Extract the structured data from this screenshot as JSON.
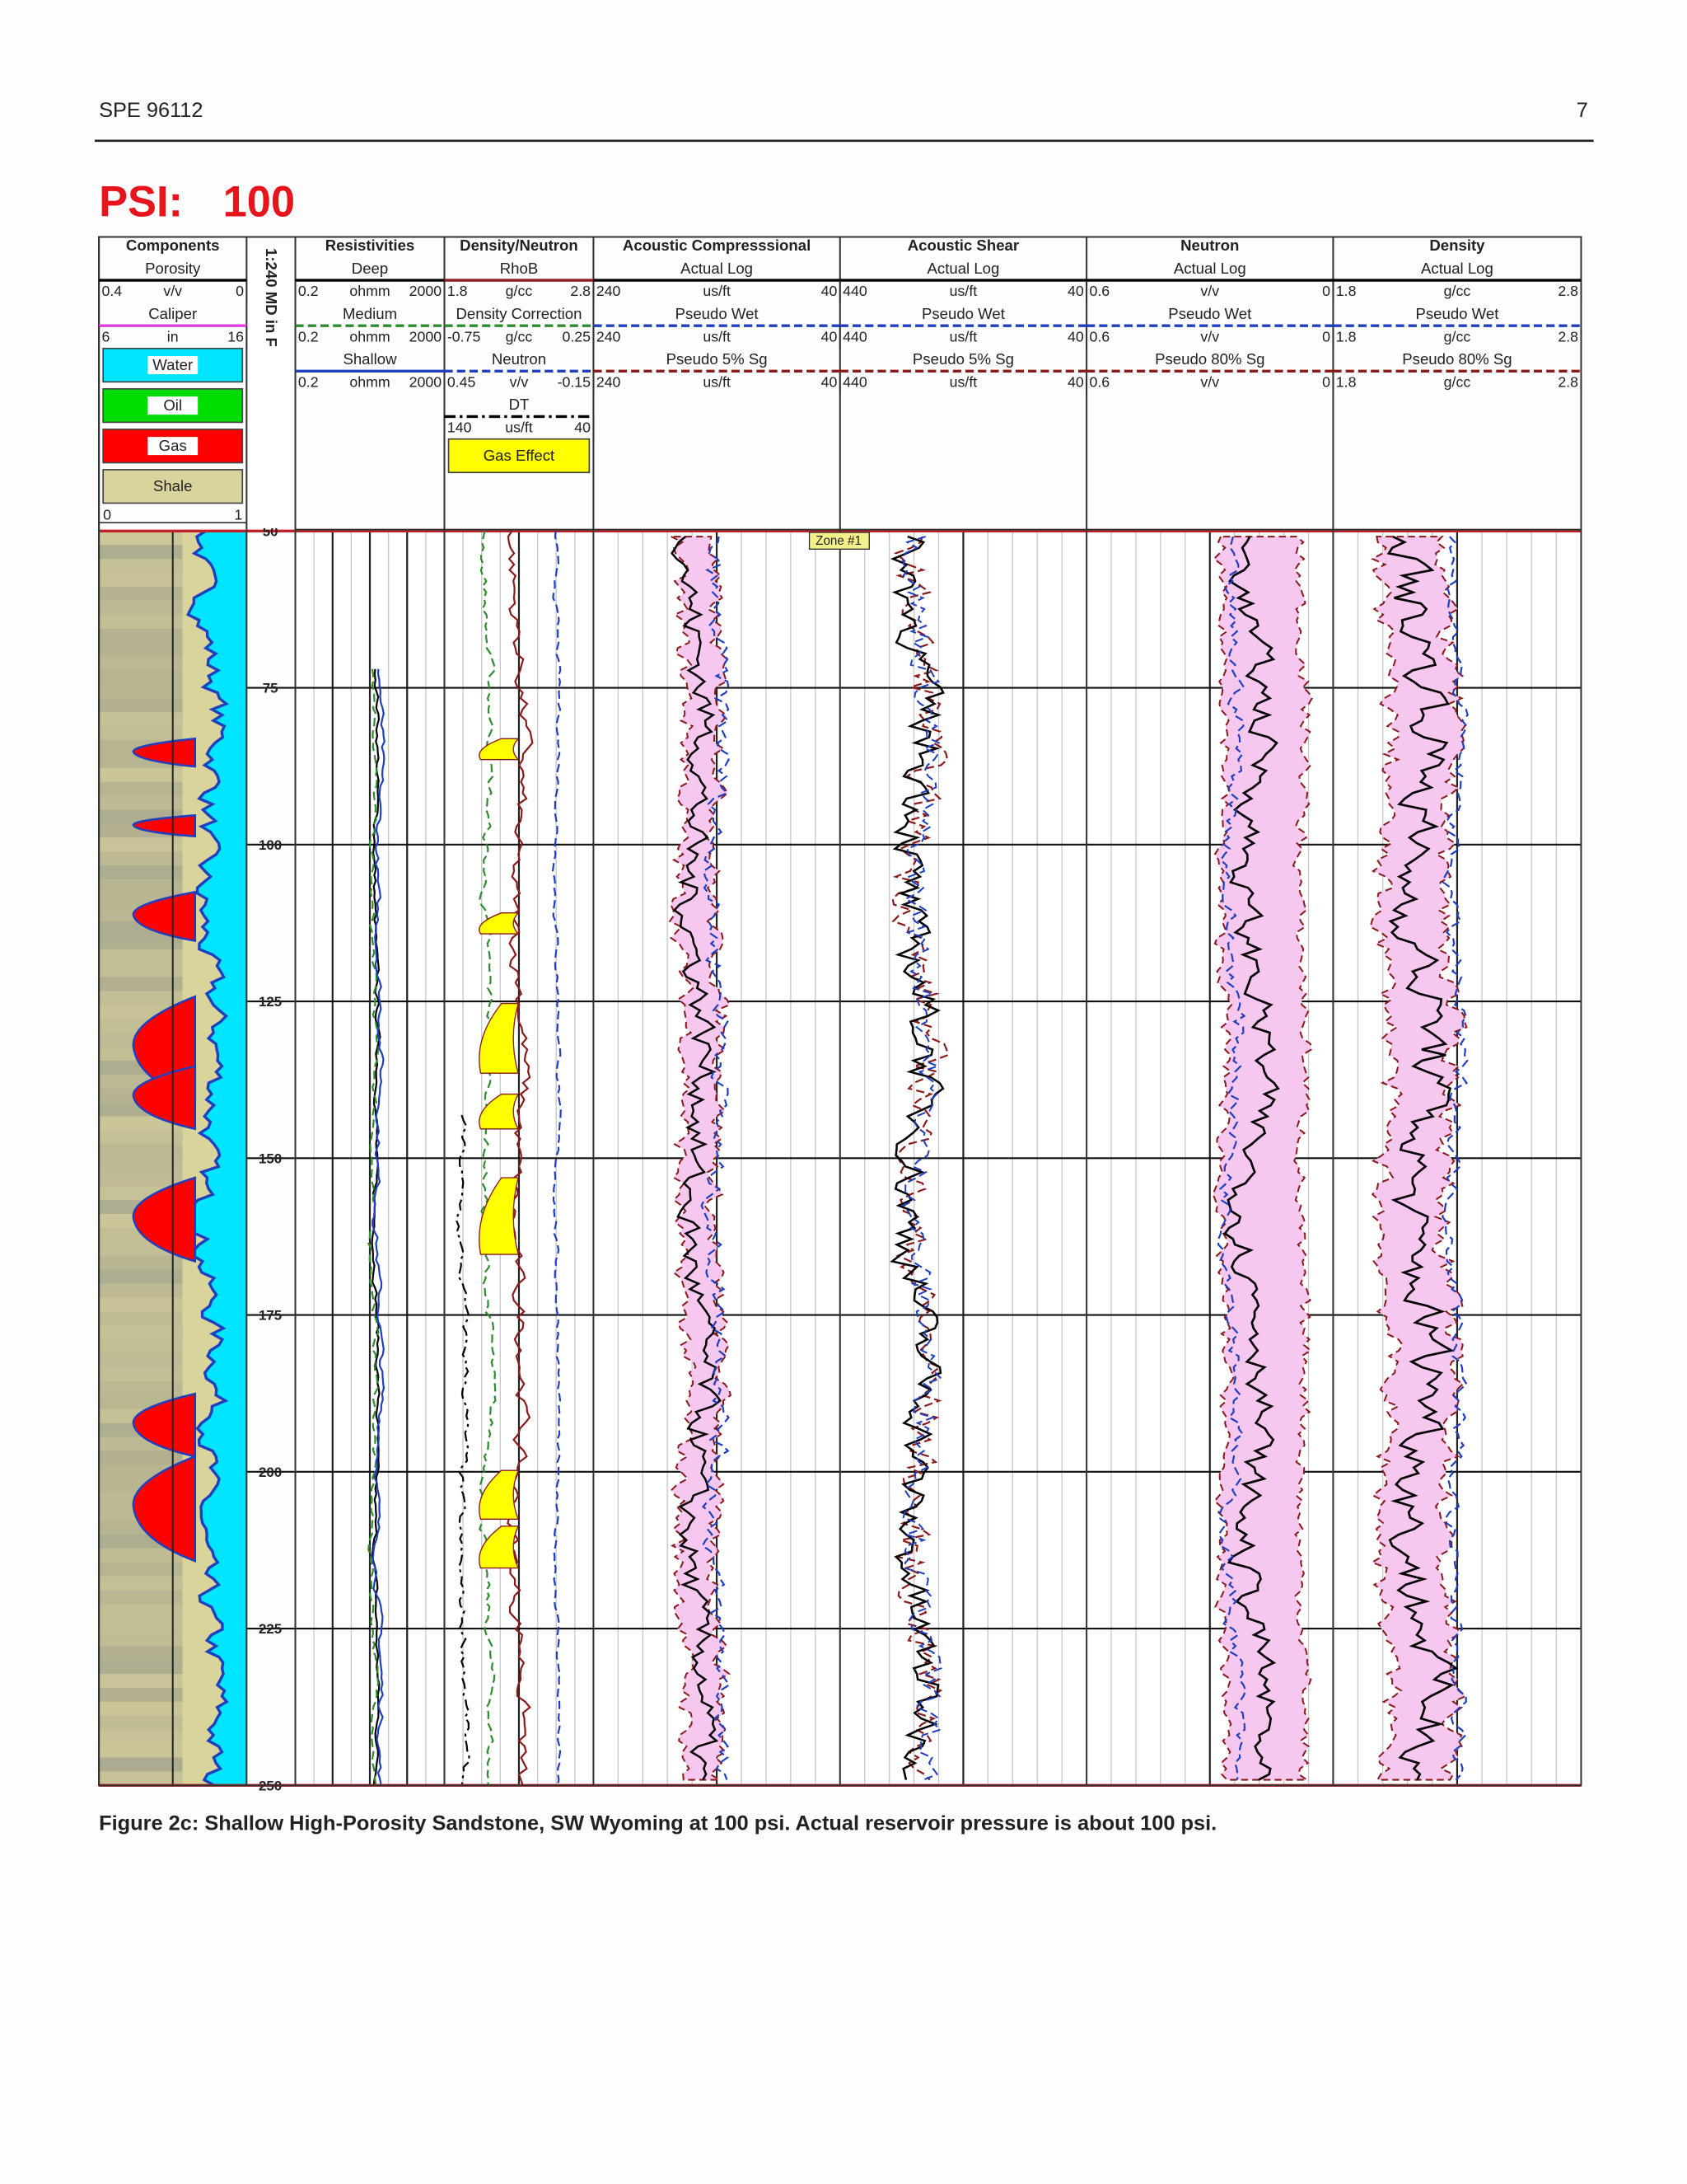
{
  "header": {
    "left": "SPE 96112",
    "right": "7"
  },
  "figure": {
    "title_label": "PSI:",
    "title_value": 100,
    "depth_label": "1:240 MD in F",
    "depth_lim": [
      50,
      250
    ],
    "depth_ticks": [
      50,
      75,
      100,
      125,
      150,
      175,
      200,
      225,
      250
    ],
    "zone": "Zone #1",
    "tracks": [
      {
        "title": "Components",
        "rows": [
          {
            "label": "Porosity"
          },
          {
            "scale": [
              0.4,
              "v/v",
              0
            ],
            "color": "#000000",
            "dash": "solid"
          },
          {
            "label": "Caliper"
          },
          {
            "scale": [
              6,
              "in",
              16
            ],
            "color": "#e040e0",
            "dash": "solid"
          }
        ],
        "legend": [
          {
            "label": "Water",
            "color": "#00e5ff"
          },
          {
            "label": "Oil",
            "color": "#00dd00"
          },
          {
            "label": "Gas",
            "color": "#ff0000"
          },
          {
            "label": "Shale",
            "color": "#d9d39c"
          }
        ],
        "footer_scale": [
          0,
          1
        ]
      },
      {
        "title": "Resistivities",
        "rows": [
          {
            "label": "Deep"
          },
          {
            "scale": [
              0.2,
              "ohmm",
              2000
            ],
            "color": "#000000",
            "dash": "solid"
          },
          {
            "label": "Medium"
          },
          {
            "scale": [
              0.2,
              "ohmm",
              2000
            ],
            "color": "#2e8b2e",
            "dash": "dashed"
          },
          {
            "label": "Shallow"
          },
          {
            "scale": [
              0.2,
              "ohmm",
              2000
            ],
            "color": "#1f3fbf",
            "dash": "solid"
          }
        ]
      },
      {
        "title": "Density/Neutron",
        "rows": [
          {
            "label": "RhoB"
          },
          {
            "scale": [
              1.8,
              "g/cc",
              2.8
            ],
            "color": "#8b1a1a",
            "dash": "solid"
          },
          {
            "label": "Density Correction"
          },
          {
            "scale": [
              -0.75,
              "g/cc",
              0.25
            ],
            "color": "#2e8b2e",
            "dash": "dashed"
          },
          {
            "label": "Neutron"
          },
          {
            "scale": [
              0.45,
              "v/v",
              -0.15
            ],
            "color": "#1f3fbf",
            "dash": "dashed"
          },
          {
            "label": "DT"
          },
          {
            "scale": [
              140,
              "us/ft",
              40
            ],
            "color": "#000000",
            "dash": "dashdot"
          }
        ],
        "legend": [
          {
            "label": "Gas Effect",
            "color": "#ffff00"
          }
        ]
      },
      {
        "title": "Acoustic Compresssional",
        "rows": [
          {
            "label": "Actual Log"
          },
          {
            "scale": [
              240,
              "us/ft",
              40
            ],
            "color": "#000000",
            "dash": "solid"
          },
          {
            "label": "Pseudo Wet"
          },
          {
            "scale": [
              240,
              "us/ft",
              40
            ],
            "color": "#1f3fbf",
            "dash": "dashed"
          },
          {
            "label": "Pseudo 5% Sg"
          },
          {
            "scale": [
              240,
              "us/ft",
              40
            ],
            "color": "#8b1a1a",
            "dash": "dashed"
          }
        ]
      },
      {
        "title": "Acoustic Shear",
        "rows": [
          {
            "label": "Actual Log"
          },
          {
            "scale": [
              440,
              "us/ft",
              40
            ],
            "color": "#000000",
            "dash": "solid"
          },
          {
            "label": "Pseudo Wet"
          },
          {
            "scale": [
              440,
              "us/ft",
              40
            ],
            "color": "#1f3fbf",
            "dash": "dashed"
          },
          {
            "label": "Pseudo 5% Sg"
          },
          {
            "scale": [
              440,
              "us/ft",
              40
            ],
            "color": "#8b1a1a",
            "dash": "dashed"
          }
        ]
      },
      {
        "title": "Neutron",
        "rows": [
          {
            "label": "Actual Log"
          },
          {
            "scale": [
              0.6,
              "v/v",
              0
            ],
            "color": "#000000",
            "dash": "solid"
          },
          {
            "label": "Pseudo Wet"
          },
          {
            "scale": [
              0.6,
              "v/v",
              0
            ],
            "color": "#1f3fbf",
            "dash": "dashed"
          },
          {
            "label": "Pseudo 80% Sg"
          },
          {
            "scale": [
              0.6,
              "v/v",
              0
            ],
            "color": "#8b1a1a",
            "dash": "dashed"
          }
        ]
      },
      {
        "title": "Density",
        "rows": [
          {
            "label": "Actual Log"
          },
          {
            "scale": [
              1.8,
              "g/cc",
              2.8
            ],
            "color": "#000000",
            "dash": "solid"
          },
          {
            "label": "Pseudo Wet"
          },
          {
            "scale": [
              1.8,
              "g/cc",
              2.8
            ],
            "color": "#1f3fbf",
            "dash": "dashed"
          },
          {
            "label": "Pseudo 80% Sg"
          },
          {
            "scale": [
              1.8,
              "g/cc",
              2.8
            ],
            "color": "#8b1a1a",
            "dash": "dashed"
          }
        ]
      }
    ]
  },
  "caption": "Figure 2c: Shallow High-Porosity Sandstone, SW Wyoming at 100 psi.  Actual reservoir pressure is about 100 psi."
}
